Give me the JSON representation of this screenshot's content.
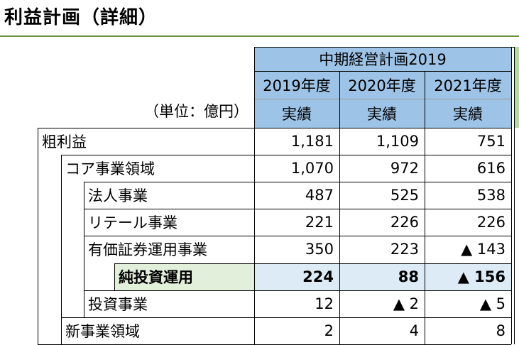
{
  "title": "利益計画（詳細）",
  "unit": "（単位：億円）",
  "plan_header": "中期経営計画2019",
  "columns": [
    {
      "year": "2019年度",
      "kind": "実績"
    },
    {
      "year": "2020年度",
      "kind": "実績"
    },
    {
      "year": "2021年度",
      "kind": "実績"
    }
  ],
  "rows": [
    {
      "label": "粗利益",
      "level": 0,
      "values": [
        "1,181",
        "1,109",
        "751"
      ]
    },
    {
      "label": "コア事業領域",
      "level": 1,
      "values": [
        "1,070",
        "972",
        "616"
      ]
    },
    {
      "label": "法人事業",
      "level": 2,
      "values": [
        "487",
        "525",
        "538"
      ]
    },
    {
      "label": "リテール事業",
      "level": 2,
      "values": [
        "221",
        "226",
        "226"
      ]
    },
    {
      "label": "有価証券運用事業",
      "level": 2,
      "values": [
        "350",
        "223",
        "▲ 143"
      ]
    },
    {
      "label": "純投資運用",
      "level": 3,
      "bold": true,
      "values": [
        "224",
        "88",
        "▲ 156"
      ]
    },
    {
      "label": "投資事業",
      "level": 2,
      "values": [
        "12",
        "▲ 2",
        "▲ 5"
      ]
    },
    {
      "label": "新事業領域",
      "level": 1,
      "values": [
        "2",
        "4",
        "8"
      ]
    }
  ],
  "colors": {
    "header_blue": "#9dc3e6",
    "header_green": "#b4dca0",
    "highlight_green": "#e2efda",
    "highlight_blue": "#ddebf7",
    "title_rule": "#6a8f3d"
  }
}
